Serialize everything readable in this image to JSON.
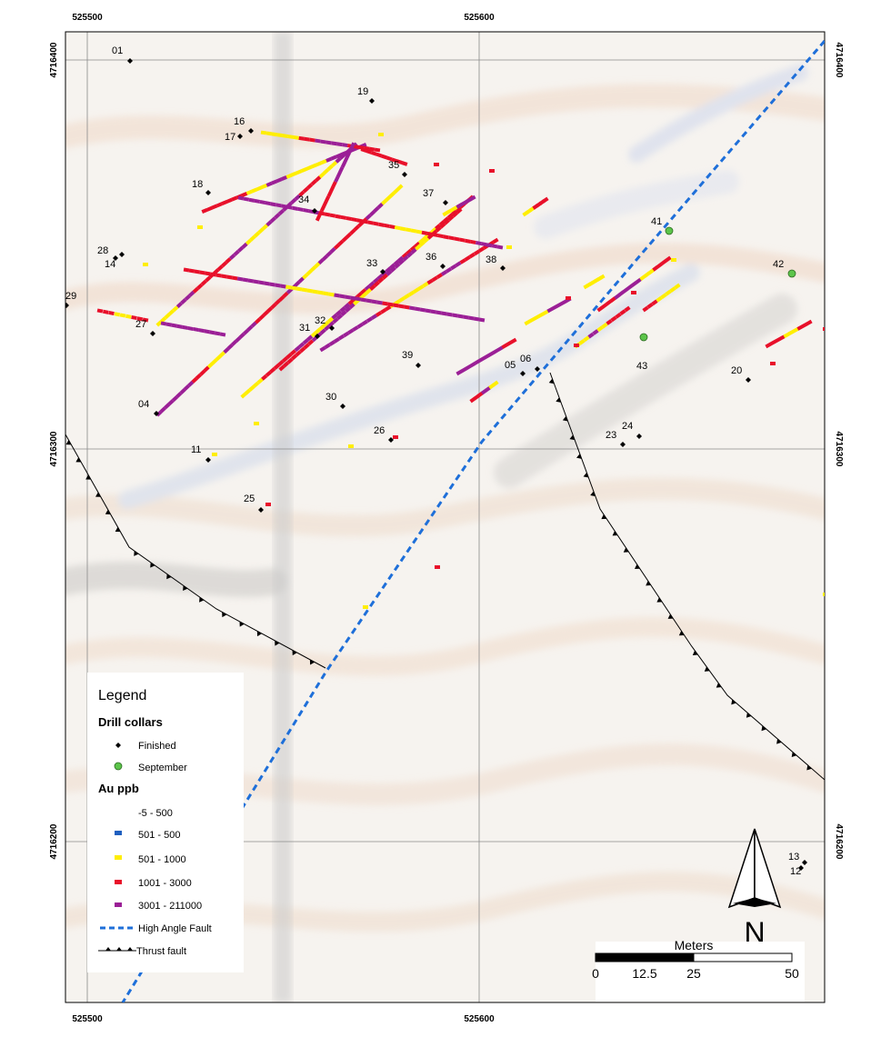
{
  "map": {
    "grid": {
      "x_ticks": [
        "525500",
        "525600"
      ],
      "y_ticks": [
        "4716400",
        "4716300",
        "4716200"
      ]
    },
    "collars_finished": [
      {
        "id": "01"
      },
      {
        "id": "19"
      },
      {
        "id": "16"
      },
      {
        "id": "17"
      },
      {
        "id": "35"
      },
      {
        "id": "18"
      },
      {
        "id": "34"
      },
      {
        "id": "37"
      },
      {
        "id": "28"
      },
      {
        "id": "14"
      },
      {
        "id": "33"
      },
      {
        "id": "36"
      },
      {
        "id": "38"
      },
      {
        "id": "29"
      },
      {
        "id": "27"
      },
      {
        "id": "31"
      },
      {
        "id": "32"
      },
      {
        "id": "39"
      },
      {
        "id": "05"
      },
      {
        "id": "06"
      },
      {
        "id": "04"
      },
      {
        "id": "30"
      },
      {
        "id": "26"
      },
      {
        "id": "23"
      },
      {
        "id": "24"
      },
      {
        "id": "20"
      },
      {
        "id": "11"
      },
      {
        "id": "25"
      },
      {
        "id": "13"
      },
      {
        "id": "12"
      }
    ],
    "collars_september": [
      {
        "id": "41"
      },
      {
        "id": "42"
      },
      {
        "id": "43"
      }
    ],
    "colors": {
      "grade_501_500": "#1f5fbf",
      "grade_501_1000": "#ffee00",
      "grade_1001_3000": "#e8102a",
      "grade_3001_211000": "#9b1f96",
      "finished": "#000000",
      "september": "#5cc44a",
      "high_angle_fault": "#1e6fd9",
      "thrust_fault": "#000000"
    }
  },
  "legend": {
    "title": "Legend",
    "drill_collars_heading": "Drill collars",
    "finished_label": "Finished",
    "september_label": "September",
    "au_heading": "Au ppb",
    "grades": [
      "-5 - 500",
      "501 - 500",
      "501 - 1000",
      "1001 - 3000",
      "3001 - 211000"
    ],
    "high_angle_fault_label": "High Angle Fault",
    "thrust_fault_label": "Thrust fault"
  },
  "scale_bar": {
    "title": "Meters",
    "labels": [
      "0",
      "12.5",
      "25",
      "50"
    ]
  },
  "north_arrow": {
    "label": "N"
  }
}
